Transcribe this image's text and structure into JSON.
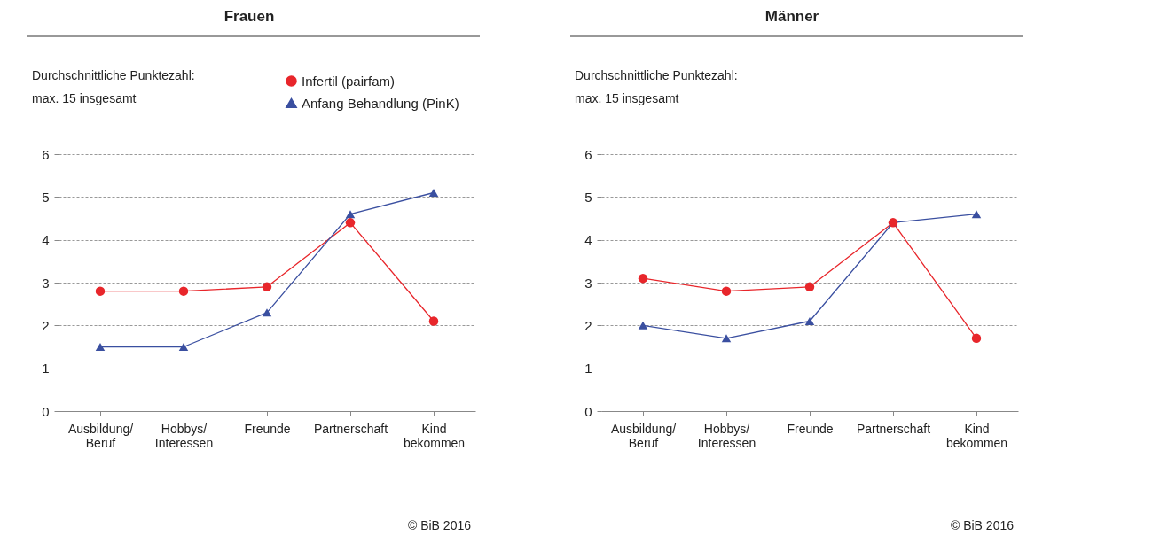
{
  "chart_data": [
    {
      "type": "line",
      "title": "Frauen",
      "ylabel": "Durchschnittliche Punktezahl:\nmax. 15 insgesamt",
      "categories": [
        "Ausbildung/\nBeruf",
        "Hobbys/\nInteressen",
        "Freunde",
        "Partnerschaft",
        "Kind\nbekommen"
      ],
      "ylim": [
        0,
        6
      ],
      "yticks": [
        0,
        1,
        2,
        3,
        4,
        5,
        6
      ],
      "grid": "y",
      "legend": "top right",
      "line_style": "solid",
      "series": [
        {
          "name": "Infertil (pairfam)",
          "color": "#e8262b",
          "marker": "circle",
          "values": [
            2.8,
            2.8,
            2.9,
            4.4,
            2.1
          ]
        },
        {
          "name": "Anfang Behandlung (PinK)",
          "color": "#3a4fa0",
          "marker": "triangle",
          "values": [
            1.5,
            1.5,
            2.3,
            4.6,
            5.1
          ]
        }
      ],
      "annotations": [
        "© BiB 2016"
      ]
    },
    {
      "type": "line",
      "title": "Männer",
      "ylabel": "Durchschnittliche Punktezahl:\nmax. 15 insgesamt",
      "categories": [
        "Ausbildung/\nBeruf",
        "Hobbys/\nInteressen",
        "Freunde",
        "Partnerschaft",
        "Kind\nbekommen"
      ],
      "ylim": [
        0,
        6
      ],
      "yticks": [
        0,
        1,
        2,
        3,
        4,
        5,
        6
      ],
      "grid": "y",
      "legend": "top right",
      "line_style": "solid",
      "series": [
        {
          "name": "Infertil (pairfam)",
          "color": "#e8262b",
          "marker": "circle",
          "values": [
            3.1,
            2.8,
            2.9,
            4.4,
            1.7
          ]
        },
        {
          "name": "Anfang Behandlung (PinK)",
          "color": "#3a4fa0",
          "marker": "triangle",
          "values": [
            2.0,
            1.7,
            2.1,
            4.4,
            4.6
          ]
        }
      ],
      "annotations": [
        "© BiB 2016"
      ]
    }
  ]
}
